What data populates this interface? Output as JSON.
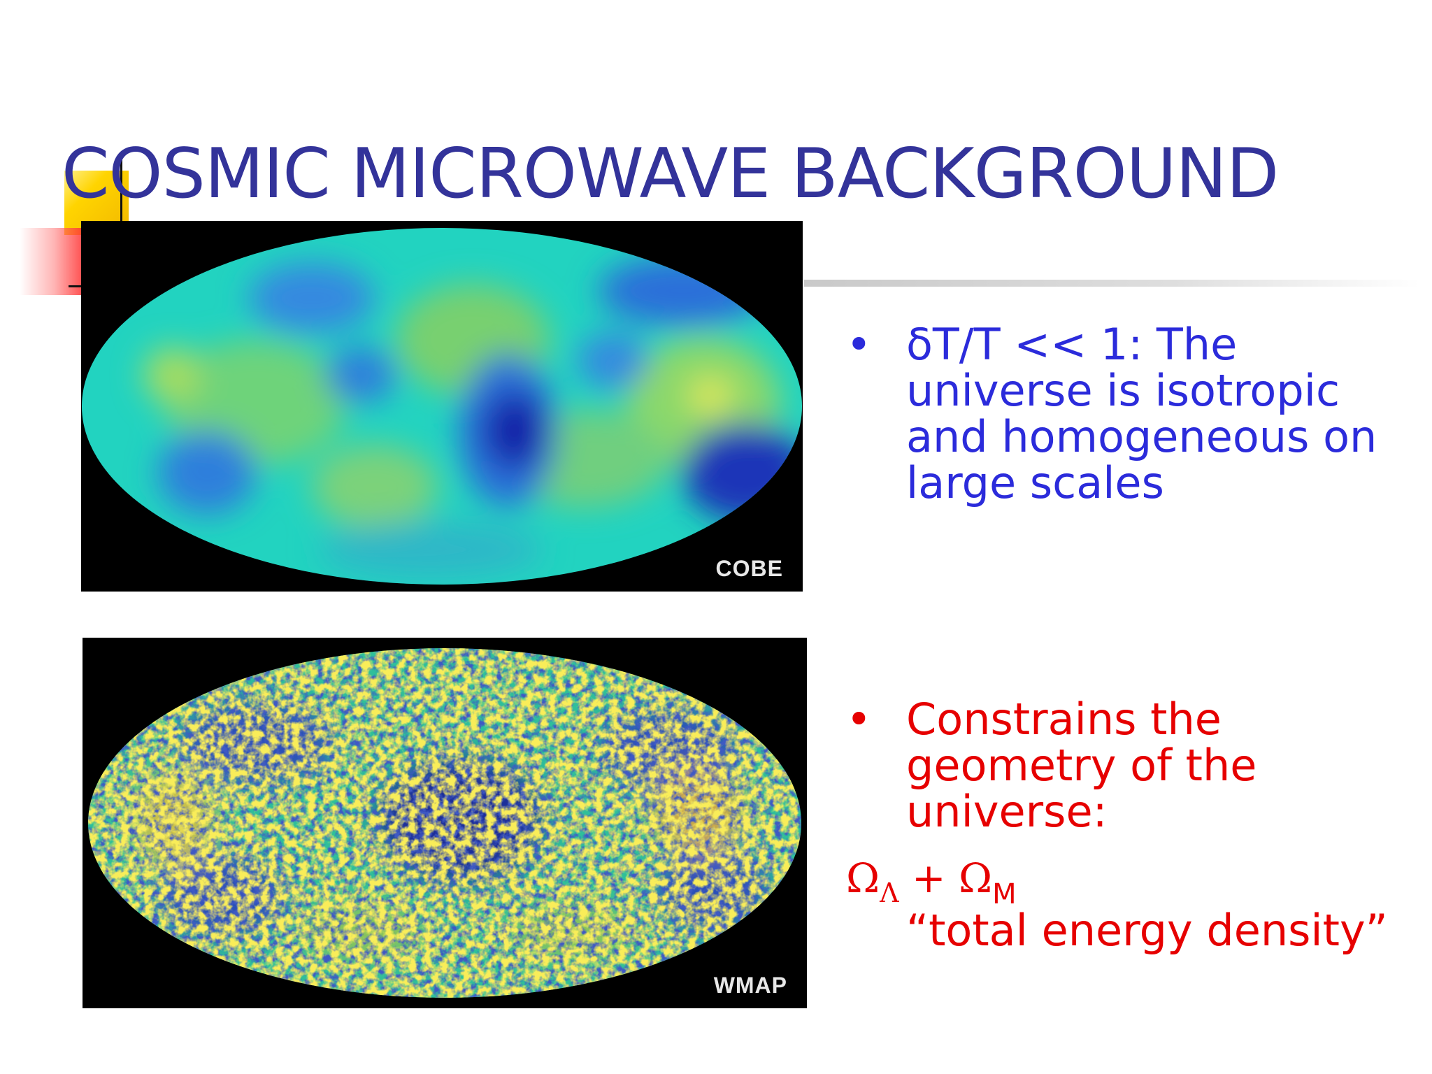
{
  "slide": {
    "title": "COSMIC MICROWAVE BACKGROUND"
  },
  "maps": [
    {
      "label": "COBE"
    },
    {
      "label": "WMAP"
    }
  ],
  "bullets": {
    "symbol": "•",
    "first": "δT/T << 1: The universe is isotropic and homogeneous on large scales",
    "second": "Constrains the geometry of the universe:"
  },
  "formula": {
    "omega": "Ω",
    "sub_lambda": "Λ",
    "plus": "+",
    "sub_m": "M",
    "caption": "“total energy density”"
  },
  "colors": {
    "title": "#33339a",
    "bullet_blue": "#2b2bdb",
    "bullet_red": "#e60000"
  }
}
